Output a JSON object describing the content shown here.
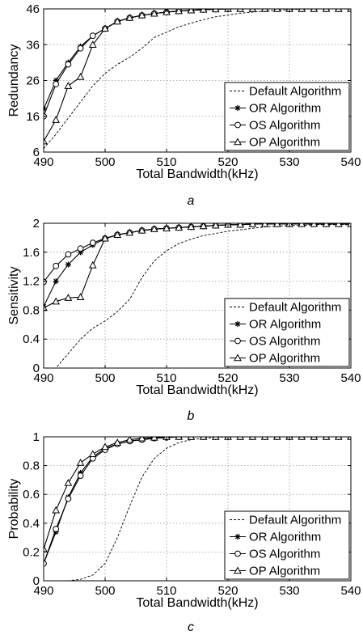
{
  "chart_data": [
    {
      "type": "line",
      "caption": "a",
      "xlabel": "Total Bandwidth(kHz)",
      "ylabel": "Redundancy",
      "xlim": [
        490,
        540
      ],
      "ylim": [
        6,
        46
      ],
      "xticks": [
        490,
        500,
        510,
        520,
        530,
        540
      ],
      "yticks": [
        6,
        16,
        26,
        36,
        46
      ],
      "grid": true,
      "legend_position": "bottom-right",
      "series": [
        {
          "name": "Default Algorithm",
          "style": "dashed",
          "marker": "none",
          "x": [
            490,
            492,
            494,
            496,
            498,
            500,
            502,
            504,
            506,
            508,
            510,
            512,
            514,
            516,
            518,
            520,
            522,
            524,
            526,
            528,
            530,
            532,
            534,
            536,
            538,
            540
          ],
          "y": [
            7,
            11,
            15.5,
            20,
            24.5,
            28,
            30.5,
            32.5,
            35,
            38,
            39.5,
            41,
            42,
            43,
            43.8,
            44.3,
            44.8,
            45.1,
            45.4,
            45.6,
            45.8,
            45.9,
            46,
            46,
            46,
            46
          ]
        },
        {
          "name": "OR Algorithm",
          "style": "solid",
          "marker": "star",
          "x": [
            490,
            492,
            494,
            496,
            498,
            500,
            502,
            504,
            506,
            508,
            510,
            512,
            514,
            516,
            518,
            520,
            522,
            524,
            526,
            528,
            530,
            532,
            534,
            536,
            538,
            540
          ],
          "y": [
            18,
            26,
            31,
            35.5,
            38.5,
            40.5,
            42.5,
            43.5,
            44.2,
            44.7,
            45.1,
            45.4,
            45.6,
            45.8,
            45.9,
            46,
            46,
            46,
            46,
            46,
            46,
            46,
            46,
            46,
            46,
            46
          ]
        },
        {
          "name": "OS Algorithm",
          "style": "solid",
          "marker": "circle",
          "x": [
            490,
            492,
            494,
            496,
            498,
            500,
            502,
            504,
            506,
            508,
            510,
            512,
            514,
            516,
            518,
            520,
            522,
            524,
            526,
            528,
            530,
            532,
            534,
            536,
            538,
            540
          ],
          "y": [
            16,
            25,
            30.5,
            35,
            38.5,
            40.5,
            42.5,
            43.5,
            44.2,
            44.7,
            45.1,
            45.4,
            45.6,
            45.8,
            45.9,
            46,
            46,
            46,
            46,
            46,
            46,
            46,
            46,
            46,
            46,
            46
          ]
        },
        {
          "name": "OP Algorithm",
          "style": "solid",
          "marker": "triangle",
          "x": [
            490,
            492,
            494,
            496,
            498,
            500,
            502,
            504,
            506,
            508,
            510,
            512,
            514,
            516,
            518,
            520,
            522,
            524,
            526,
            528,
            530,
            532,
            534,
            536,
            538,
            540
          ],
          "y": [
            9,
            15,
            24.5,
            27,
            36,
            40.5,
            42.5,
            43.5,
            44.2,
            44.7,
            45.1,
            45.4,
            45.6,
            45.8,
            45.9,
            46,
            46,
            46,
            46,
            46,
            46,
            46,
            46,
            46,
            46,
            46
          ]
        }
      ]
    },
    {
      "type": "line",
      "caption": "b",
      "xlabel": "Total Bandwidth(kHz)",
      "ylabel": "Sensitivity",
      "xlim": [
        490,
        540
      ],
      "ylim": [
        0,
        2
      ],
      "xticks": [
        490,
        500,
        510,
        520,
        530,
        540
      ],
      "yticks": [
        0,
        0.4,
        0.8,
        1.2,
        1.6,
        2
      ],
      "grid": true,
      "legend_position": "bottom-right",
      "series": [
        {
          "name": "Default Algorithm",
          "style": "dashed",
          "marker": "none",
          "x": [
            490,
            492,
            494,
            496,
            498,
            500,
            502,
            504,
            506,
            508,
            510,
            512,
            514,
            516,
            518,
            520,
            522,
            524,
            526,
            528,
            530,
            532,
            534,
            536,
            538,
            540
          ],
          "y": [
            -0.1,
            0,
            0.2,
            0.4,
            0.55,
            0.65,
            0.78,
            0.95,
            1.25,
            1.48,
            1.62,
            1.72,
            1.78,
            1.83,
            1.86,
            1.89,
            1.91,
            1.93,
            1.95,
            1.96,
            1.97,
            1.97,
            1.98,
            1.98,
            1.98,
            1.98
          ]
        },
        {
          "name": "OR Algorithm",
          "style": "solid",
          "marker": "star",
          "x": [
            490,
            492,
            494,
            496,
            498,
            500,
            502,
            504,
            506,
            508,
            510,
            512,
            514,
            516,
            518,
            520,
            522,
            524,
            526,
            528,
            530,
            532,
            534,
            536,
            538,
            540
          ],
          "y": [
            0.85,
            1.2,
            1.43,
            1.6,
            1.7,
            1.79,
            1.84,
            1.87,
            1.9,
            1.92,
            1.93,
            1.94,
            1.95,
            1.96,
            1.97,
            1.98,
            1.98,
            1.99,
            1.99,
            1.99,
            1.99,
            1.99,
            1.99,
            1.99,
            1.99,
            1.99
          ]
        },
        {
          "name": "OS Algorithm",
          "style": "solid",
          "marker": "circle",
          "x": [
            490,
            492,
            494,
            496,
            498,
            500,
            502,
            504,
            506,
            508,
            510,
            512,
            514,
            516,
            518,
            520,
            522,
            524,
            526,
            528,
            530,
            532,
            534,
            536,
            538,
            540
          ],
          "y": [
            1.19,
            1.41,
            1.57,
            1.65,
            1.73,
            1.79,
            1.84,
            1.87,
            1.9,
            1.92,
            1.93,
            1.94,
            1.95,
            1.96,
            1.97,
            1.98,
            1.98,
            1.99,
            1.99,
            1.99,
            1.99,
            1.99,
            1.99,
            1.99,
            1.99,
            1.99
          ]
        },
        {
          "name": "OP Algorithm",
          "style": "solid",
          "marker": "triangle",
          "x": [
            490,
            492,
            494,
            496,
            498,
            500,
            502,
            504,
            506,
            508,
            510,
            512,
            514,
            516,
            518,
            520,
            522,
            524,
            526,
            528,
            530,
            532,
            534,
            536,
            538,
            540
          ],
          "y": [
            0.83,
            0.92,
            0.97,
            0.98,
            1.42,
            1.79,
            1.84,
            1.87,
            1.9,
            1.92,
            1.93,
            1.94,
            1.95,
            1.96,
            1.97,
            1.98,
            1.98,
            1.99,
            1.99,
            1.99,
            1.99,
            1.99,
            1.99,
            1.99,
            1.99,
            1.99
          ]
        }
      ]
    },
    {
      "type": "line",
      "caption": "c",
      "xlabel": "Total Bandwidth(kHz)",
      "ylabel": "Probability",
      "xlim": [
        490,
        540
      ],
      "ylim": [
        0,
        1
      ],
      "xticks": [
        490,
        500,
        510,
        520,
        530,
        540
      ],
      "yticks": [
        0,
        0.2,
        0.4,
        0.6,
        0.8,
        1
      ],
      "grid": true,
      "legend_position": "bottom-right",
      "series": [
        {
          "name": "Default Algorithm",
          "style": "dashed",
          "marker": "none",
          "x": [
            490,
            492,
            494,
            496,
            498,
            500,
            502,
            504,
            506,
            508,
            510,
            512,
            514,
            516,
            518,
            520,
            522,
            524,
            526,
            528,
            530,
            532,
            534,
            536,
            538,
            540
          ],
          "y": [
            -0.1,
            -0.05,
            0,
            0.01,
            0.04,
            0.12,
            0.3,
            0.52,
            0.72,
            0.85,
            0.92,
            0.96,
            0.98,
            0.99,
            0.995,
            1,
            1,
            1,
            1,
            1,
            1,
            1,
            1,
            1,
            1,
            1
          ]
        },
        {
          "name": "OR Algorithm",
          "style": "solid",
          "marker": "star",
          "x": [
            490,
            492,
            494,
            496,
            498,
            500,
            502,
            504,
            506,
            508,
            510,
            512,
            514,
            516,
            518,
            520,
            522,
            524,
            526,
            528,
            530,
            532,
            534,
            536,
            538,
            540
          ],
          "y": [
            0.12,
            0.34,
            0.58,
            0.75,
            0.86,
            0.92,
            0.95,
            0.97,
            0.98,
            0.99,
            0.995,
            1,
            1,
            1,
            1,
            1,
            1,
            1,
            1,
            1,
            1,
            1,
            1,
            1,
            1,
            1
          ]
        },
        {
          "name": "OS Algorithm",
          "style": "solid",
          "marker": "circle",
          "x": [
            490,
            492,
            494,
            496,
            498,
            500,
            502,
            504,
            506,
            508,
            510,
            512,
            514,
            516,
            518,
            520,
            522,
            524,
            526,
            528,
            530,
            532,
            534,
            536,
            538,
            540
          ],
          "y": [
            0.12,
            0.36,
            0.57,
            0.73,
            0.85,
            0.91,
            0.95,
            0.97,
            0.98,
            0.99,
            0.995,
            1,
            1,
            1,
            1,
            1,
            1,
            1,
            1,
            1,
            1,
            1,
            1,
            1,
            1,
            1
          ]
        },
        {
          "name": "OP Algorithm",
          "style": "solid",
          "marker": "triangle",
          "x": [
            490,
            492,
            494,
            496,
            498,
            500,
            502,
            504,
            506,
            508,
            510,
            512,
            514,
            516,
            518,
            520,
            522,
            524,
            526,
            528,
            530,
            532,
            534,
            536,
            538,
            540
          ],
          "y": [
            0.22,
            0.49,
            0.68,
            0.82,
            0.88,
            0.93,
            0.96,
            0.98,
            0.99,
            0.995,
            1,
            1,
            1,
            1,
            1,
            1,
            1,
            1,
            1,
            1,
            1,
            1,
            1,
            1,
            1,
            1
          ]
        }
      ]
    }
  ]
}
